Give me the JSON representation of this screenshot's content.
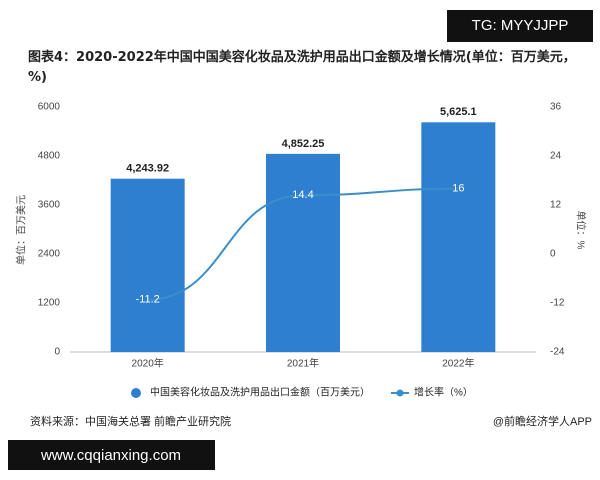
{
  "chart_data": {
    "type": "bar-line",
    "tag": "TG: MYYJJPP",
    "title": "图表4：2020-2022年中国中国美容化妆品及洗护用品出口金额及增长情况(单位：百万美元，%)",
    "y_label": "单位：百万美元",
    "y2_label": "单位：%",
    "categories": [
      "2020年",
      "2021年",
      "2022年"
    ],
    "series": [
      {
        "name": "中国美容化妆品及洗护用品出口金额（百万美元）",
        "type": "bar",
        "color": "#2f7fd0",
        "values": [
          4243.92,
          4852.25,
          5625.1
        ],
        "value_labels": [
          "4,243.92",
          "4,852.25",
          "5,625.1"
        ]
      },
      {
        "name": "增长率（%）",
        "type": "line",
        "axis": "y2",
        "color": "#3a8fc9",
        "values": [
          -11.2,
          14.4,
          16
        ]
      }
    ],
    "ylim": [
      0,
      6000
    ],
    "yticks": [
      0,
      1200,
      2400,
      3600,
      4800,
      6000
    ],
    "y2lim": [
      -24,
      36
    ],
    "y2ticks": [
      -24,
      -12,
      0,
      12,
      24,
      36
    ],
    "source": "资料来源：中国海关总署 前瞻产业研究院",
    "credit": "@前瞻经济学人APP",
    "website": "www.cqqianxing.com"
  }
}
